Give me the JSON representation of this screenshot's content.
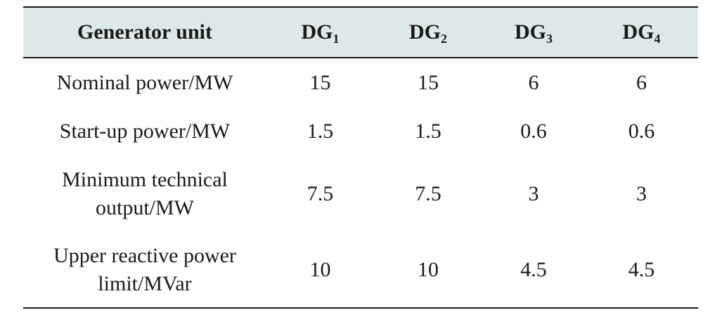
{
  "table": {
    "header": {
      "row_label": "Generator unit",
      "columns": [
        {
          "main": "DG",
          "sub": "1"
        },
        {
          "main": "DG",
          "sub": "2"
        },
        {
          "main": "DG",
          "sub": "3"
        },
        {
          "main": "DG",
          "sub": "4"
        }
      ]
    },
    "rows": [
      {
        "label": [
          "Nominal power/MW"
        ],
        "values": [
          "15",
          "15",
          "6",
          "6"
        ]
      },
      {
        "label": [
          "Start-up power/MW"
        ],
        "values": [
          "1.5",
          "1.5",
          "0.6",
          "0.6"
        ]
      },
      {
        "label": [
          "Minimum technical",
          "output/MW"
        ],
        "values": [
          "7.5",
          "7.5",
          "3",
          "3"
        ]
      },
      {
        "label": [
          "Upper reactive power",
          "limit/MVar"
        ],
        "values": [
          "10",
          "10",
          "4.5",
          "4.5"
        ]
      }
    ]
  },
  "colors": {
    "header_background": "#dce9e8",
    "rule": "#1a1a1a",
    "text": "#1a1a1a"
  }
}
